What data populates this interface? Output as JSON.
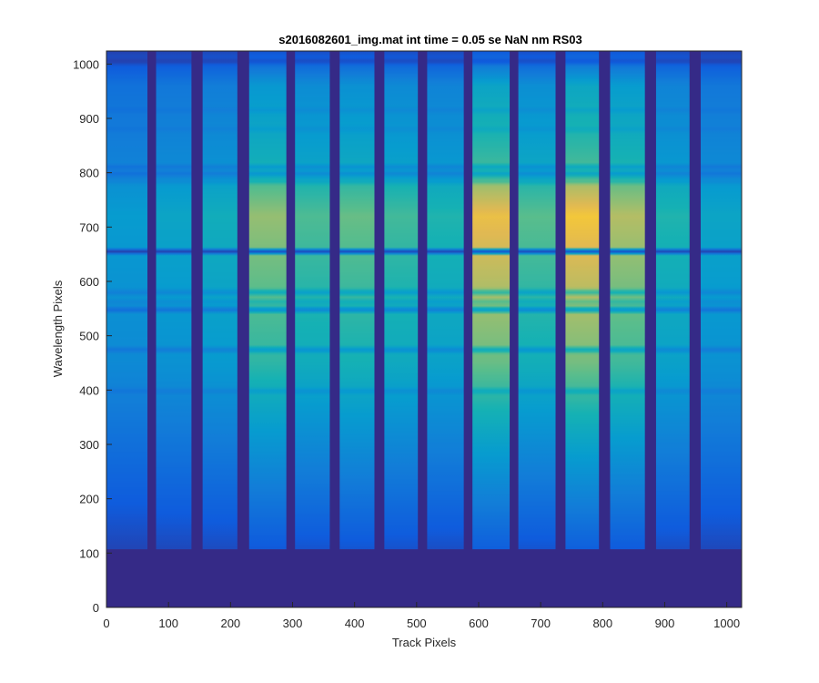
{
  "chart_data": {
    "type": "heatmap",
    "title": "s2016082601_img.mat int time = 0.05 se  NaN nm RS03",
    "xlabel": "Track Pixels",
    "ylabel": "Wavelength Pixels",
    "xlim": [
      0,
      1024
    ],
    "ylim": [
      0,
      1024
    ],
    "xticks": [
      0,
      100,
      200,
      300,
      400,
      500,
      600,
      700,
      800,
      900,
      1000
    ],
    "yticks": [
      0,
      100,
      200,
      300,
      400,
      500,
      600,
      700,
      800,
      900,
      1000
    ],
    "colormap": "parula",
    "grid": false,
    "signal_onset_wavelength_pixel": 107,
    "tracks": [
      {
        "x_start": 0,
        "x_end": 66,
        "level": 0.45
      },
      {
        "x_start": 80,
        "x_end": 137,
        "level": 0.5
      },
      {
        "x_start": 155,
        "x_end": 211,
        "level": 0.55
      },
      {
        "x_start": 230,
        "x_end": 290,
        "level": 0.78
      },
      {
        "x_start": 304,
        "x_end": 360,
        "level": 0.68
      },
      {
        "x_start": 376,
        "x_end": 432,
        "level": 0.72
      },
      {
        "x_start": 448,
        "x_end": 502,
        "level": 0.66
      },
      {
        "x_start": 517,
        "x_end": 576,
        "level": 0.6
      },
      {
        "x_start": 590,
        "x_end": 650,
        "level": 0.9
      },
      {
        "x_start": 664,
        "x_end": 724,
        "level": 0.7
      },
      {
        "x_start": 740,
        "x_end": 794,
        "level": 0.92
      },
      {
        "x_start": 812,
        "x_end": 868,
        "level": 0.82
      },
      {
        "x_start": 886,
        "x_end": 940,
        "level": 0.6
      },
      {
        "x_start": 958,
        "x_end": 1024,
        "level": 0.5
      }
    ],
    "absorption_lines": [
      {
        "y": 655,
        "depth": 0.85
      },
      {
        "y": 548,
        "depth": 0.45
      },
      {
        "y": 562,
        "depth": 0.15
      },
      {
        "y": 580,
        "depth": 0.25
      },
      {
        "y": 798,
        "depth": 0.3
      },
      {
        "y": 810,
        "depth": 0.25
      },
      {
        "y": 785,
        "depth": 0.18
      },
      {
        "y": 474,
        "depth": 0.3
      },
      {
        "y": 398,
        "depth": 0.18
      },
      {
        "y": 1005,
        "depth": 0.5
      },
      {
        "y": 915,
        "depth": 0.1
      },
      {
        "y": 880,
        "depth": 0.1
      }
    ]
  }
}
